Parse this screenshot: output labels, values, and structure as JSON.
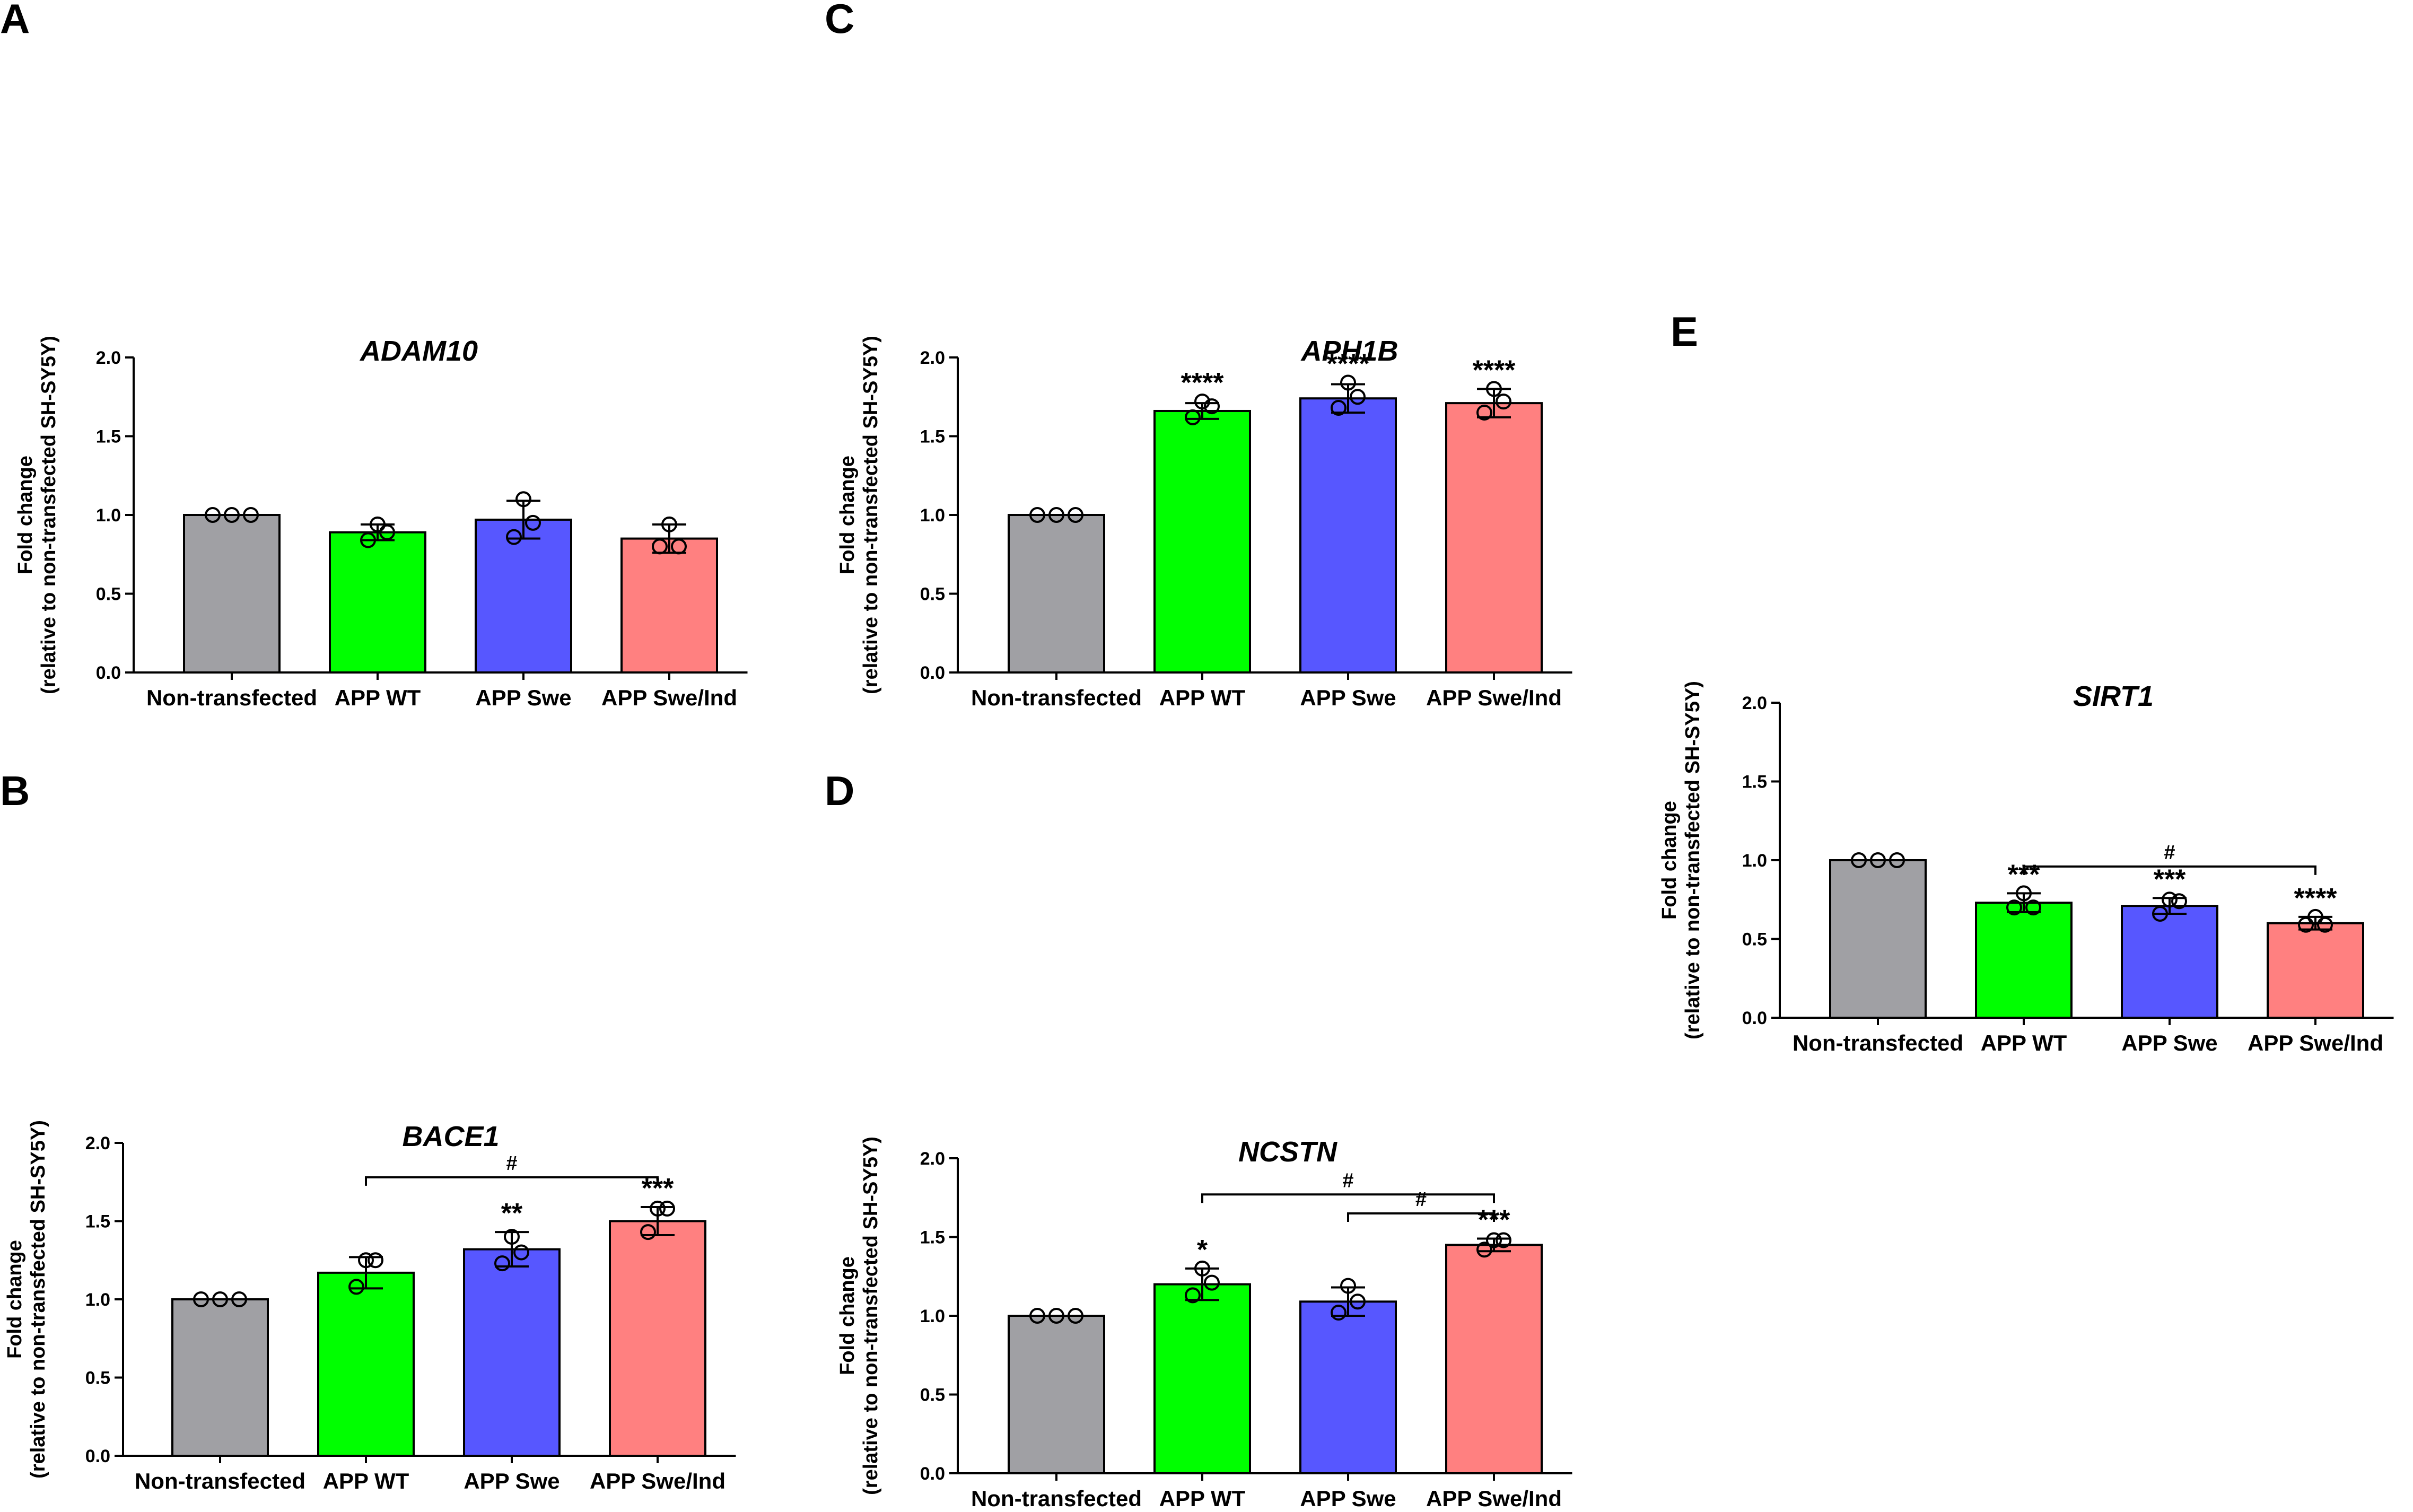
{
  "figure": {
    "colors": {
      "Non-transfected": "#a0a0a4",
      "APP WT": "#00ff00",
      "APP Swe": "#5757ff",
      "APP Swe/Ind": "#ff8080",
      "outline": "#000000"
    }
  },
  "chart_data": [
    {
      "panel": "A",
      "type": "bar",
      "title": "ADAM10",
      "ylabel_lines": [
        "Fold change",
        "(relative to non-transfected SH-SY5Y)"
      ],
      "categories": [
        "Non-transfected",
        "APP WT",
        "APP Swe",
        "APP Swe/Ind"
      ],
      "values": [
        1.0,
        0.89,
        0.97,
        0.85
      ],
      "error": [
        0.0,
        0.05,
        0.12,
        0.09
      ],
      "points": [
        [
          1.0,
          1.0,
          1.0
        ],
        [
          0.94,
          0.89,
          0.84
        ],
        [
          1.1,
          0.95,
          0.86
        ],
        [
          0.94,
          0.8,
          0.8
        ]
      ],
      "significance": [
        "",
        "",
        "",
        ""
      ],
      "brackets": [],
      "ylim": [
        0,
        2.0
      ],
      "yticks": [
        "0.0",
        "0.5",
        "1.0",
        "1.5",
        "2.0"
      ]
    },
    {
      "panel": "B",
      "type": "bar",
      "title": "BACE1",
      "ylabel_lines": [
        "Fold change",
        "(relative to non-transfected SH-SY5Y)"
      ],
      "categories": [
        "Non-transfected",
        "APP WT",
        "APP Swe",
        "APP Swe/Ind"
      ],
      "values": [
        1.0,
        1.17,
        1.32,
        1.5
      ],
      "error": [
        0.0,
        0.1,
        0.11,
        0.09
      ],
      "points": [
        [
          1.0,
          1.0,
          1.0
        ],
        [
          1.25,
          1.25,
          1.08
        ],
        [
          1.4,
          1.3,
          1.23
        ],
        [
          1.58,
          1.58,
          1.43
        ]
      ],
      "significance": [
        "",
        "",
        "**",
        "***"
      ],
      "brackets": [
        {
          "from": 1,
          "to": 3,
          "y": 1.78,
          "label": "#"
        }
      ],
      "ylim": [
        0,
        2.0
      ],
      "yticks": [
        "0.0",
        "0.5",
        "1.0",
        "1.5",
        "2.0"
      ]
    },
    {
      "panel": "C",
      "type": "bar",
      "title": "APH1B",
      "ylabel_lines": [
        "Fold change",
        "(relative to non-transfected SH-SY5Y)"
      ],
      "categories": [
        "Non-transfected",
        "APP WT",
        "APP Swe",
        "APP Swe/Ind"
      ],
      "values": [
        1.0,
        1.66,
        1.74,
        1.71
      ],
      "error": [
        0.0,
        0.05,
        0.09,
        0.09
      ],
      "points": [
        [
          1.0,
          1.0,
          1.0
        ],
        [
          1.72,
          1.69,
          1.62
        ],
        [
          1.84,
          1.75,
          1.68
        ],
        [
          1.8,
          1.72,
          1.65
        ]
      ],
      "significance": [
        "",
        "****",
        "****",
        "****"
      ],
      "brackets": [],
      "ylim": [
        0,
        2.0
      ],
      "yticks": [
        "0.0",
        "0.5",
        "1.0",
        "1.5",
        "2.0"
      ]
    },
    {
      "panel": "D",
      "type": "bar",
      "title": "NCSTN",
      "ylabel_lines": [
        "Fold change",
        "(relative to non-transfected SH-SY5Y)"
      ],
      "categories": [
        "Non-transfected",
        "APP WT",
        "APP Swe",
        "APP Swe/Ind"
      ],
      "values": [
        1.0,
        1.2,
        1.09,
        1.45
      ],
      "error": [
        0.0,
        0.1,
        0.09,
        0.04
      ],
      "points": [
        [
          1.0,
          1.0,
          1.0
        ],
        [
          1.3,
          1.21,
          1.13
        ],
        [
          1.19,
          1.09,
          1.02
        ],
        [
          1.48,
          1.48,
          1.42
        ]
      ],
      "significance": [
        "",
        "*",
        "",
        "***"
      ],
      "brackets": [
        {
          "from": 1,
          "to": 3,
          "y": 1.77,
          "label": "#"
        },
        {
          "from": 2,
          "to": 3,
          "y": 1.65,
          "label": "#"
        }
      ],
      "ylim": [
        0,
        2.0
      ],
      "yticks": [
        "0.0",
        "0.5",
        "1.0",
        "1.5",
        "2.0"
      ]
    },
    {
      "panel": "E",
      "type": "bar",
      "title": "SIRT1",
      "ylabel_lines": [
        "Fold change",
        "(relative to non-transfected SH-SY5Y)"
      ],
      "categories": [
        "Non-transfected",
        "APP WT",
        "APP Swe",
        "APP Swe/Ind"
      ],
      "values": [
        1.0,
        0.73,
        0.71,
        0.6
      ],
      "error": [
        0.0,
        0.06,
        0.05,
        0.04
      ],
      "points": [
        [
          1.0,
          1.0,
          1.0
        ],
        [
          0.79,
          0.7,
          0.7
        ],
        [
          0.75,
          0.74,
          0.66
        ],
        [
          0.64,
          0.59,
          0.59
        ]
      ],
      "significance": [
        "",
        "***",
        "***",
        "****"
      ],
      "brackets": [
        {
          "from": 1,
          "to": 3,
          "y": 0.96,
          "label": "#"
        }
      ],
      "ylim": [
        0,
        2.0
      ],
      "yticks": [
        "0.0",
        "0.5",
        "1.0",
        "1.5",
        "2.0"
      ]
    }
  ]
}
